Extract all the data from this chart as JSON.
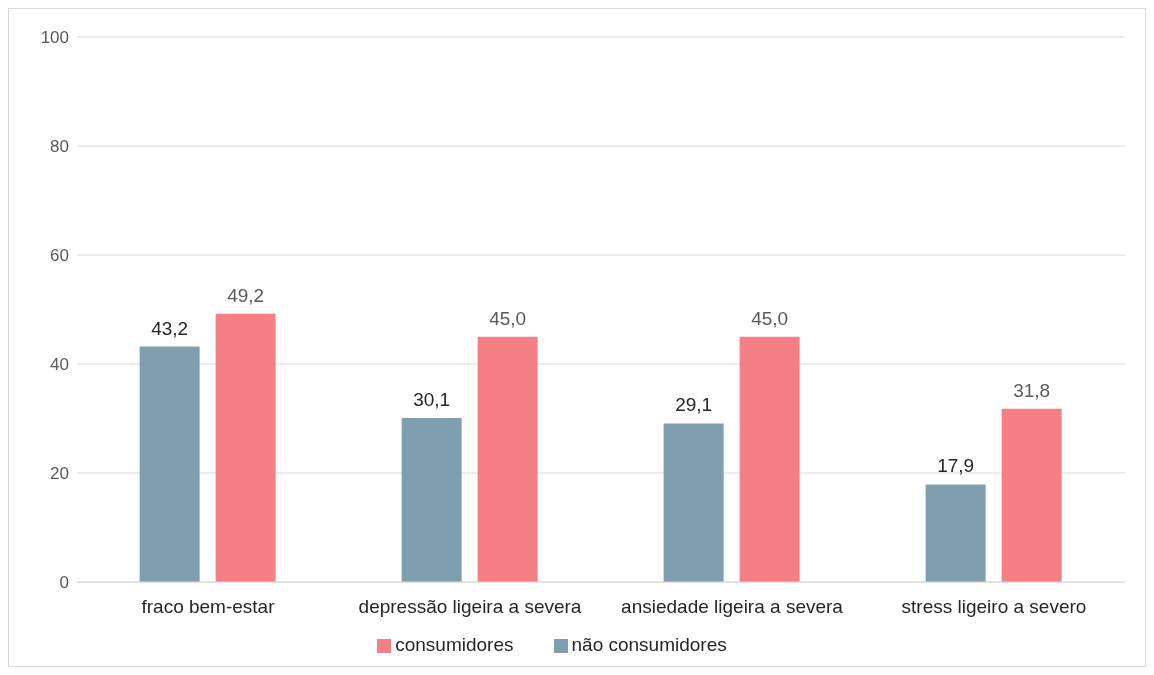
{
  "chart_data": {
    "type": "bar",
    "categories": [
      "fraco bem-estar",
      "depressão ligeira a severa",
      "ansiedade ligeira a severa",
      "stress ligeiro a severo"
    ],
    "series": [
      {
        "name": "não consumidores",
        "color": "#7f9fb1",
        "values": [
          43.2,
          30.1,
          29.1,
          17.9
        ],
        "value_labels": [
          "43,2",
          "30,1",
          "29,1",
          "17,9"
        ]
      },
      {
        "name": "consumidores",
        "color": "#f47f84",
        "values": [
          49.2,
          45.0,
          45.0,
          31.8
        ],
        "value_labels": [
          "49,2",
          "45,0",
          "45,0",
          "31,8"
        ]
      }
    ],
    "ylim": [
      0,
      100
    ],
    "yticks": [
      0,
      20,
      40,
      60,
      80,
      100
    ],
    "grid": "y",
    "legend": "bottom"
  }
}
